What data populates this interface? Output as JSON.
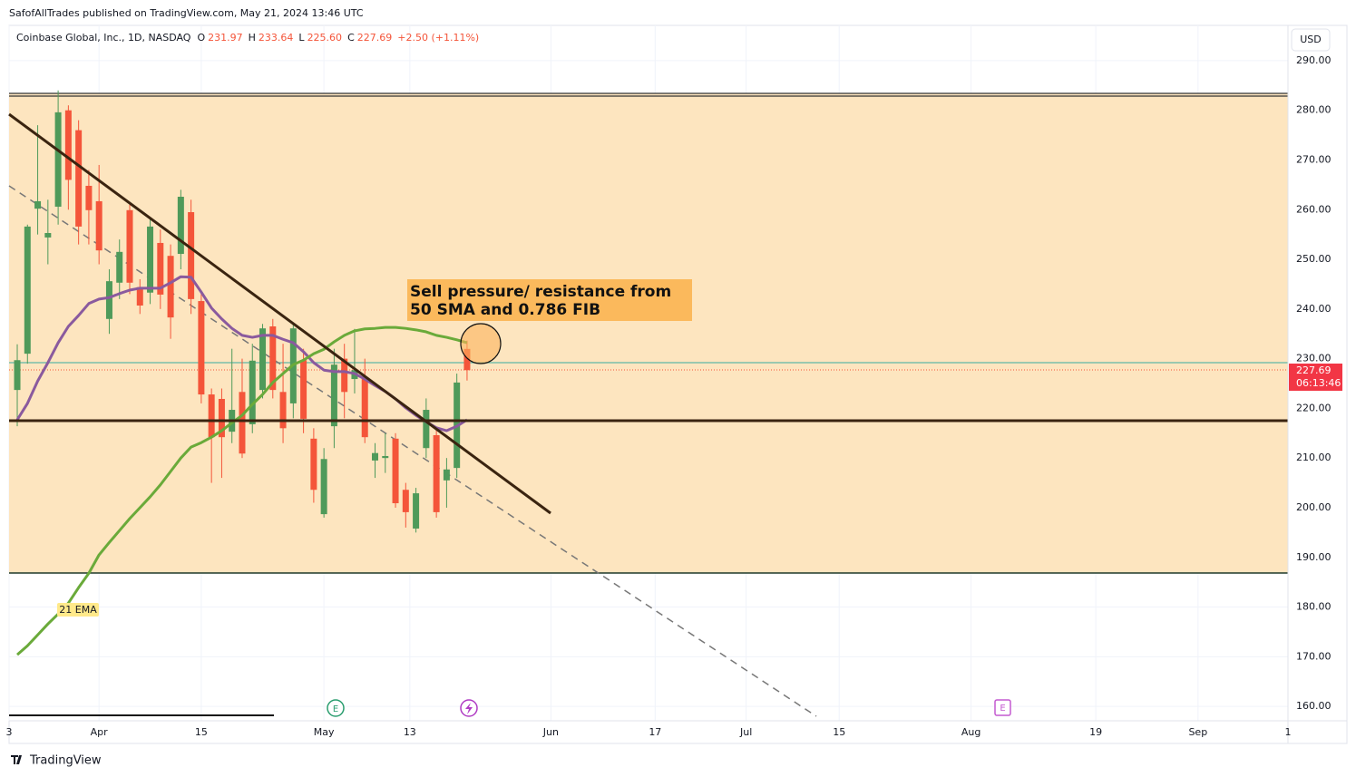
{
  "chart_data": {
    "type": "candlestick",
    "header": "SafofAllTrades published on TradingView.com, May 21, 2024 13:46 UTC",
    "legend": {
      "symbol": "Coinbase Global, Inc., 1D, NASDAQ",
      "fields": [
        {
          "key": "O",
          "value": "231.97"
        },
        {
          "key": "H",
          "value": "233.64"
        },
        {
          "key": "L",
          "value": "225.60"
        },
        {
          "key": "C",
          "value": "227.69"
        }
      ],
      "change": "+2.50 (+1.11%)"
    },
    "currency": "USD",
    "countdown": "06:13:46",
    "annotation": [
      "Sell pressure/ resistance from",
      "50 SMA and 0.786 FIB"
    ],
    "line_label": "21 EMA",
    "footer": "TradingView",
    "up_color": "#4f9a5a",
    "down_color": "#f4553a",
    "x": [
      0,
      1,
      2,
      3,
      4,
      5,
      6,
      7,
      8,
      9,
      10,
      11,
      12,
      13,
      14,
      15,
      16,
      17,
      18,
      19,
      20,
      21,
      22,
      23,
      24,
      25,
      26,
      27,
      28,
      29,
      30,
      31,
      32,
      33,
      34,
      35,
      36,
      37,
      38,
      39,
      40,
      41,
      42,
      43,
      44
    ],
    "open": [
      223.7,
      231,
      260.2,
      254.4,
      260.6,
      280,
      276,
      264.8,
      261.7,
      238,
      245.3,
      259.9,
      244.4,
      243.3,
      253.3,
      250.7,
      251.1,
      259.5,
      241.6,
      222.8,
      221.9,
      215.3,
      223.3,
      216.8,
      223.7,
      236.5,
      223.3,
      221,
      229.7,
      213.9,
      198.7,
      216.4,
      230,
      225.9,
      225.9,
      209.5,
      210,
      213.9,
      203.6,
      195.8,
      212,
      214.6,
      205.5,
      208,
      231.97
    ],
    "high": [
      232.9,
      257,
      277,
      262,
      284,
      281,
      278,
      268,
      269,
      248,
      254,
      261,
      246,
      258,
      256,
      253,
      264,
      262,
      243,
      224,
      224,
      232,
      230,
      233,
      237,
      238,
      233,
      237,
      232,
      216,
      212,
      232,
      233,
      236,
      230,
      213,
      215,
      215,
      205,
      204,
      222,
      216,
      210,
      227,
      233.64
    ],
    "low": [
      216.4,
      229,
      255,
      249,
      257,
      260,
      253,
      253,
      249,
      235,
      242,
      243,
      239,
      241,
      240,
      234,
      248,
      239,
      221,
      205,
      206,
      213,
      210,
      215,
      222,
      222,
      213,
      218,
      215,
      201,
      198,
      212,
      218,
      223,
      213,
      206,
      207,
      200,
      196,
      195,
      210,
      198,
      200,
      206,
      225.6
    ],
    "close": [
      229.7,
      256.6,
      261.7,
      255.3,
      279.6,
      266,
      256.6,
      259.9,
      251.8,
      245.6,
      251.5,
      245.3,
      240.7,
      256.6,
      242.9,
      238.3,
      262.6,
      242,
      222.8,
      214.2,
      214.2,
      219.7,
      210.9,
      229.6,
      236.1,
      223.7,
      216,
      236.1,
      217.9,
      203.6,
      209.8,
      228.8,
      223.3,
      227.7,
      214.2,
      211,
      210.4,
      200.9,
      199.1,
      202.9,
      219.7,
      199.1,
      207.7,
      225.2,
      227.69
    ],
    "series": [
      {
        "color": "#8a5a9e",
        "values": [
          217.7,
          221.0,
          225.5,
          229.2,
          233.2,
          236.5,
          238.7,
          241.1,
          242.0,
          242.3,
          243.1,
          243.8,
          244.2,
          244.2,
          244.2,
          245.3,
          246.5,
          246.4,
          243.4,
          240.2,
          238.0,
          236.1,
          234.7,
          234.3,
          234.7,
          234.7,
          233.9,
          233.2,
          231.4,
          229.2,
          227.7,
          227.4,
          227.4,
          227.0,
          225.9,
          224.6,
          223.4,
          221.9,
          220.1,
          218.6,
          217.3,
          216.1,
          215.5,
          216.4,
          217.7
        ]
      },
      {
        "color": "#6aaa3a",
        "values": [
          170.4,
          172.2,
          174.4,
          176.6,
          178.6,
          180.8,
          183.9,
          186.8,
          190.5,
          193.0,
          195.4,
          197.8,
          200.0,
          202.2,
          204.6,
          207.3,
          210.0,
          212.2,
          213.1,
          214.2,
          215.5,
          217.1,
          218.6,
          220.8,
          222.8,
          225.2,
          227.0,
          228.8,
          229.7,
          231.0,
          231.9,
          233.4,
          234.7,
          235.6,
          236.0,
          236.1,
          236.3,
          236.3,
          236.1,
          235.8,
          235.4,
          234.7,
          234.3,
          233.8,
          233.2
        ]
      }
    ],
    "xlim": [
      -0.8,
      124.3
    ],
    "xticks": [
      {
        "value": -0.8,
        "label": "3"
      },
      {
        "value": 8,
        "label": "Apr"
      },
      {
        "value": 18,
        "label": "15"
      },
      {
        "value": 30,
        "label": "May"
      },
      {
        "value": 38.4,
        "label": "13"
      },
      {
        "value": 52.2,
        "label": "Jun"
      },
      {
        "value": 62.4,
        "label": "17"
      },
      {
        "value": 71.3,
        "label": "Jul"
      },
      {
        "value": 80.4,
        "label": "15"
      },
      {
        "value": 93.3,
        "label": "Aug"
      },
      {
        "value": 105.5,
        "label": "19"
      },
      {
        "value": 115.5,
        "label": "Sep"
      },
      {
        "value": 124.3,
        "label": "1"
      }
    ],
    "ylim": [
      157.1,
      297.1
    ],
    "yticks": [
      {
        "value": 160,
        "label": "160.00"
      },
      {
        "value": 170,
        "label": "170.00"
      },
      {
        "value": 180,
        "label": "180.00"
      },
      {
        "value": 190,
        "label": "190.00"
      },
      {
        "value": 200,
        "label": "200.00"
      },
      {
        "value": 210,
        "label": "210.00"
      },
      {
        "value": 220,
        "label": "220.00"
      },
      {
        "value": 230,
        "label": "230.00"
      },
      {
        "value": 240,
        "label": "240.00"
      },
      {
        "value": 250,
        "label": "250.00"
      },
      {
        "value": 260,
        "label": "260.00"
      },
      {
        "value": 270,
        "label": "270.00"
      },
      {
        "value": 280,
        "label": "280.00"
      },
      {
        "value": 290,
        "label": "290.00"
      }
    ],
    "grid": true
  }
}
